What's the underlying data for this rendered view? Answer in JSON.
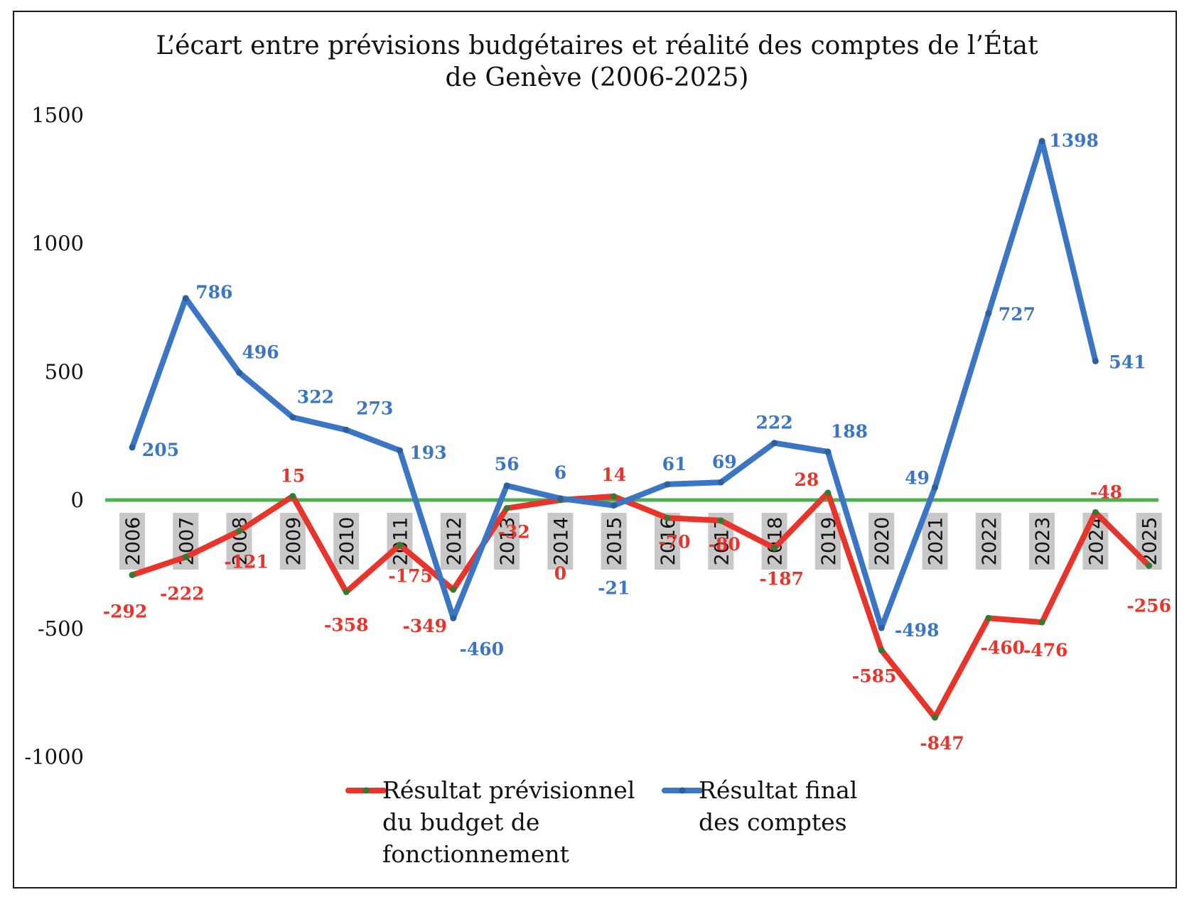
{
  "chart_data": {
    "type": "line",
    "title": [
      "L’écart entre prévisions budgétaires et réalité des comptes de l’État",
      "de Genève (2006-2025)"
    ],
    "categories": [
      "2006",
      "2007",
      "2008",
      "2009",
      "2010",
      "2011",
      "2012",
      "2013",
      "2014",
      "2015",
      "2016",
      "2017",
      "2018",
      "2019",
      "2020",
      "2021",
      "2022",
      "2023",
      "2024",
      "2025"
    ],
    "ylim": [
      -1000,
      1500
    ],
    "yticks": [
      1500,
      1000,
      500,
      0,
      -500,
      -1000
    ],
    "ytick_labels": [
      "1500",
      "1000",
      "500",
      "0",
      "-500",
      "-1000"
    ],
    "zero_line_color": "#4caf50",
    "series": [
      {
        "name": [
          "Résultat prévisionnel",
          "du budget de",
          "fonctionnement"
        ],
        "color": "#e8342a",
        "values": [
          -292,
          -222,
          -121,
          15,
          -358,
          -175,
          -349,
          -32,
          0,
          14,
          -70,
          -80,
          -187,
          28,
          -585,
          -847,
          -460,
          -476,
          -48,
          -256
        ],
        "labels": [
          "-292",
          "-222",
          "-121",
          "15",
          "-358",
          "-175",
          "-349",
          "-32",
          "0",
          "14",
          "-70",
          "-80",
          "-187",
          "28",
          "-585",
          "-847",
          "-460",
          "-476",
          "-48",
          "-256"
        ]
      },
      {
        "name": [
          "Résultat final",
          "des comptes"
        ],
        "color": "#3a76c4",
        "values": [
          205,
          786,
          496,
          322,
          273,
          193,
          -460,
          56,
          6,
          -21,
          61,
          69,
          222,
          188,
          -498,
          49,
          727,
          1398,
          541,
          null
        ],
        "labels": [
          "205",
          "786",
          "496",
          "322",
          "273",
          "193",
          "-460",
          "56",
          "6",
          "-21",
          "61",
          "69",
          "222",
          "188",
          "-498",
          "49",
          "727",
          "1398",
          "541",
          ""
        ]
      }
    ],
    "legend_position": "bottom",
    "grid": false
  }
}
